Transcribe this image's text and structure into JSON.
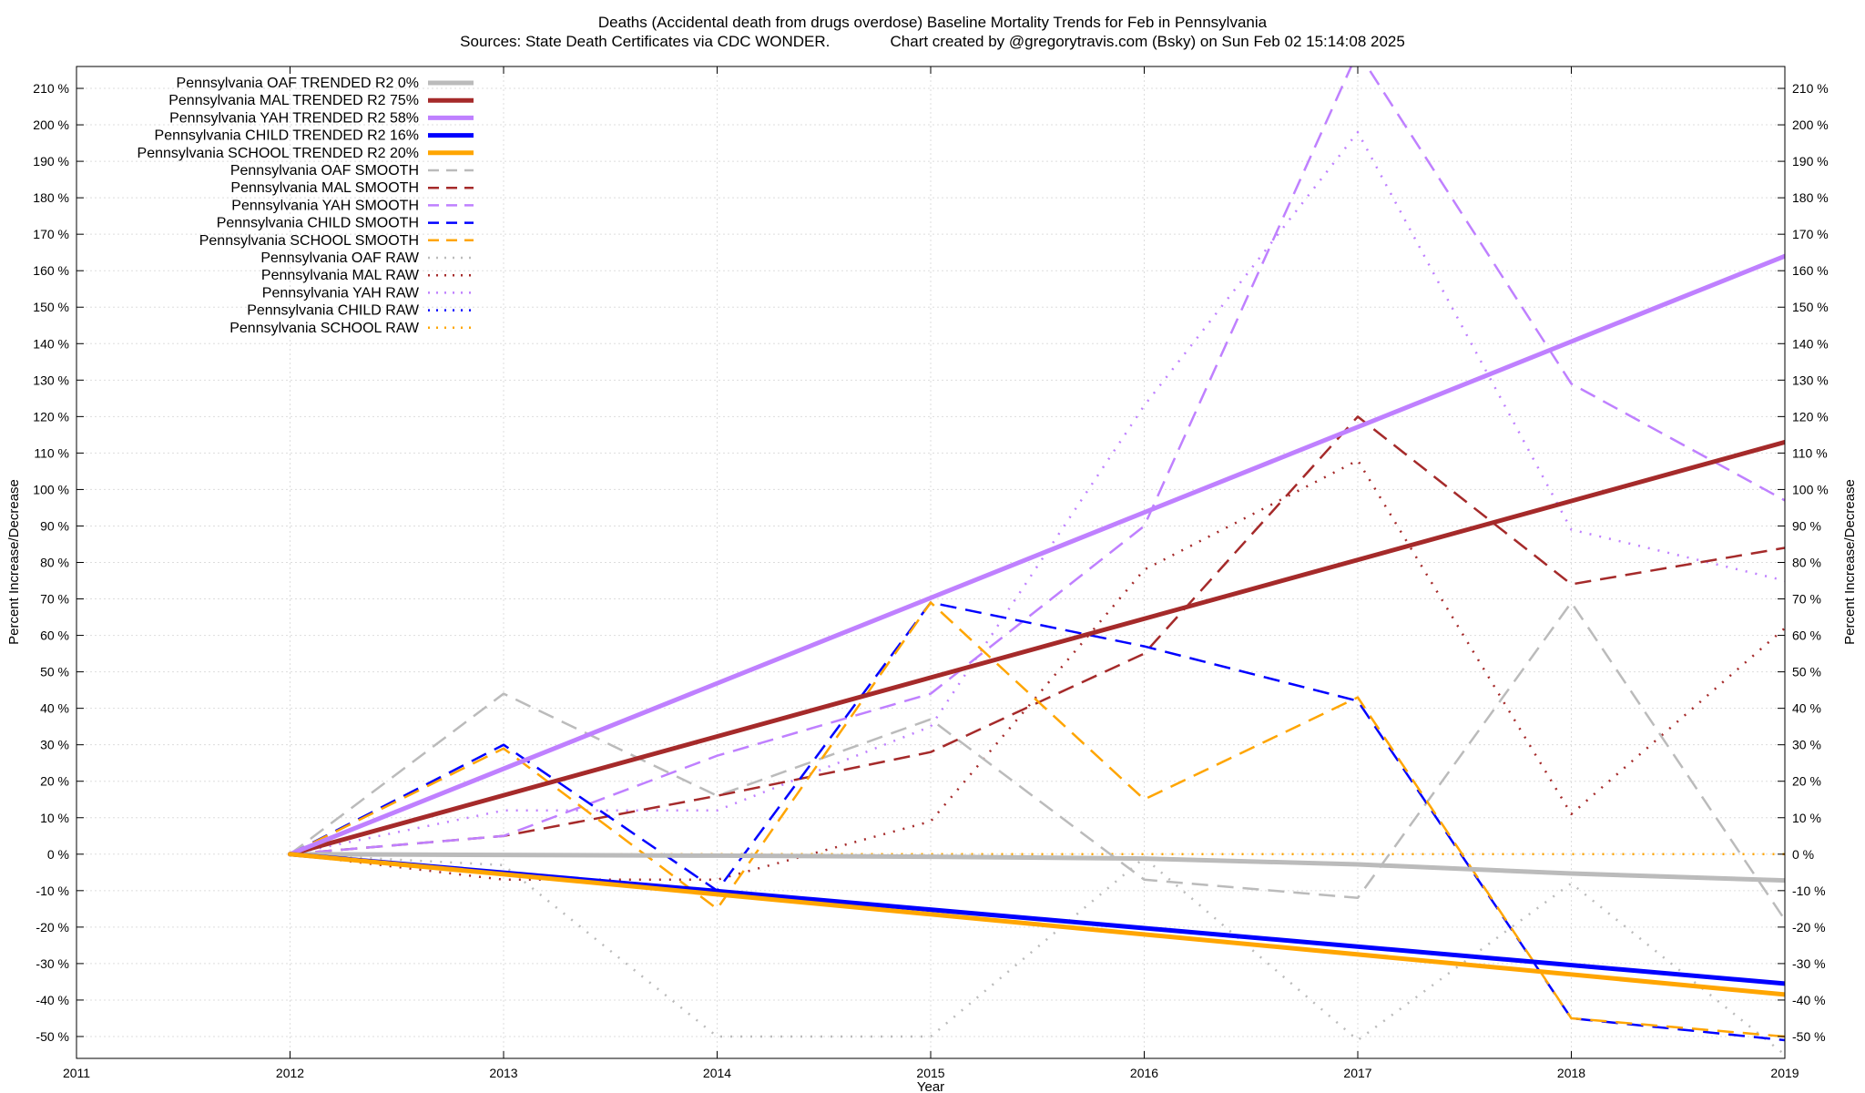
{
  "chart_data": {
    "type": "line",
    "title": "Deaths (Accidental death from drugs overdose)  Baseline Mortality Trends for Feb in Pennsylvania",
    "subtitle": "Sources: State Death Certificates via CDC WONDER.              Chart created by @gregorytravis.com (Bsky) on Sun Feb 02 15:14:08 2025",
    "xlabel": "Year",
    "ylabel": "Percent Increase/Decrease",
    "y2label": "Percent Increase/Decrease",
    "xlim": [
      2011,
      2019
    ],
    "ylim": [
      -56,
      216
    ],
    "x_ticks": [
      2011,
      2012,
      2013,
      2014,
      2015,
      2016,
      2017,
      2018,
      2019
    ],
    "x_tick_labels": [
      "2011",
      "2012",
      "2013",
      "2014",
      "2015",
      "2016",
      "2017",
      "2018",
      "2019"
    ],
    "y_ticks": [
      -50,
      -40,
      -30,
      -20,
      -10,
      0,
      10,
      20,
      30,
      40,
      50,
      60,
      70,
      80,
      90,
      100,
      110,
      120,
      130,
      140,
      150,
      160,
      170,
      180,
      190,
      200,
      210
    ],
    "y_tick_labels": [
      "-50 %",
      "-40 %",
      "-30 %",
      "-20 %",
      "-10 %",
      "0 %",
      "10 %",
      "20 %",
      "30 %",
      "40 %",
      "50 %",
      "60 %",
      "70 %",
      "80 %",
      "90 %",
      "100 %",
      "110 %",
      "120 %",
      "130 %",
      "140 %",
      "150 %",
      "160 %",
      "170 %",
      "180 %",
      "190 %",
      "200 %",
      "210 %"
    ],
    "grid": true,
    "legend_position": "top-left",
    "series": [
      {
        "name": "Pennsylvania OAF TRENDED R2  0%",
        "style": "solid",
        "color": "#bbbbbb",
        "x": [
          2012,
          2013,
          2014,
          2015,
          2016,
          2017,
          2018,
          2019
        ],
        "y": [
          0,
          -0.2,
          -0.4,
          -0.7,
          -1.2,
          -2.8,
          -5.3,
          -7.2
        ]
      },
      {
        "name": "Pennsylvania MAL TRENDED R2  75%",
        "style": "solid",
        "color": "#a52a2a",
        "x": [
          2012,
          2019
        ],
        "y": [
          0,
          113
        ]
      },
      {
        "name": "Pennsylvania YAH TRENDED R2  58%",
        "style": "solid",
        "color": "#bf80ff",
        "x": [
          2012,
          2019
        ],
        "y": [
          0,
          164
        ]
      },
      {
        "name": "Pennsylvania CHILD TRENDED R2  16%",
        "style": "solid",
        "color": "#0000ff",
        "x": [
          2012,
          2019
        ],
        "y": [
          0,
          -35.5
        ]
      },
      {
        "name": "Pennsylvania SCHOOL TRENDED R2  20%",
        "style": "solid",
        "color": "#ffa500",
        "x": [
          2012,
          2019
        ],
        "y": [
          0,
          -38.5
        ]
      },
      {
        "name": "Pennsylvania OAF SMOOTH",
        "style": "dashed",
        "color": "#bbbbbb",
        "x": [
          2012,
          2013,
          2014,
          2015,
          2016,
          2017,
          2018,
          2019
        ],
        "y": [
          0,
          44,
          16,
          37,
          -7,
          -12,
          69,
          -18
        ]
      },
      {
        "name": "Pennsylvania MAL SMOOTH",
        "style": "dashed",
        "color": "#a52a2a",
        "x": [
          2012,
          2013,
          2014,
          2015,
          2016,
          2017,
          2018,
          2019
        ],
        "y": [
          0,
          5,
          16,
          28,
          55,
          120,
          74,
          84
        ]
      },
      {
        "name": "Pennsylvania YAH SMOOTH",
        "style": "dashed",
        "color": "#bf80ff",
        "x": [
          2012,
          2013,
          2014,
          2015,
          2016,
          2017,
          2018,
          2019
        ],
        "y": [
          0,
          5,
          27,
          44,
          90,
          220,
          129,
          97
        ]
      },
      {
        "name": "Pennsylvania CHILD SMOOTH",
        "style": "dashed",
        "color": "#0000ff",
        "x": [
          2012,
          2013,
          2014,
          2015,
          2016,
          2017,
          2018,
          2019
        ],
        "y": [
          0,
          30,
          -10,
          69,
          57,
          42,
          -45,
          -51
        ]
      },
      {
        "name": "Pennsylvania SCHOOL SMOOTH",
        "style": "dashed",
        "color": "#ffa500",
        "x": [
          2012,
          2013,
          2014,
          2015,
          2016,
          2017,
          2018,
          2019
        ],
        "y": [
          0,
          29,
          -15,
          69,
          15,
          43,
          -45,
          -50
        ]
      },
      {
        "name": "Pennsylvania OAF RAW",
        "style": "dotted",
        "color": "#bbbbbb",
        "x": [
          2012,
          2013,
          2014,
          2015,
          2016,
          2017,
          2018,
          2019
        ],
        "y": [
          0,
          -3,
          -50,
          -50,
          -1,
          -51,
          -8,
          -55
        ]
      },
      {
        "name": "Pennsylvania MAL RAW",
        "style": "dotted",
        "color": "#a52a2a",
        "x": [
          2012,
          2013,
          2014,
          2015,
          2016,
          2017,
          2018,
          2019
        ],
        "y": [
          0,
          -7,
          -7,
          9,
          78,
          108,
          11,
          62
        ]
      },
      {
        "name": "Pennsylvania YAH RAW",
        "style": "dotted",
        "color": "#bf80ff",
        "x": [
          2012,
          2013,
          2014,
          2015,
          2016,
          2017,
          2018,
          2019
        ],
        "y": [
          0,
          12,
          12,
          35,
          123,
          198,
          89,
          75
        ]
      },
      {
        "name": "Pennsylvania CHILD RAW",
        "style": "dotted",
        "color": "#0000ff",
        "x": [
          2012,
          2013,
          2014,
          2015,
          2016,
          2017,
          2018,
          2019
        ],
        "y": [
          0,
          0,
          0,
          0,
          0,
          0,
          0,
          0
        ]
      },
      {
        "name": "Pennsylvania SCHOOL RAW",
        "style": "dotted",
        "color": "#ffa500",
        "x": [
          2012,
          2013,
          2014,
          2015,
          2016,
          2017,
          2018,
          2019
        ],
        "y": [
          0,
          0,
          0,
          0,
          0,
          0,
          0,
          0
        ]
      }
    ]
  }
}
